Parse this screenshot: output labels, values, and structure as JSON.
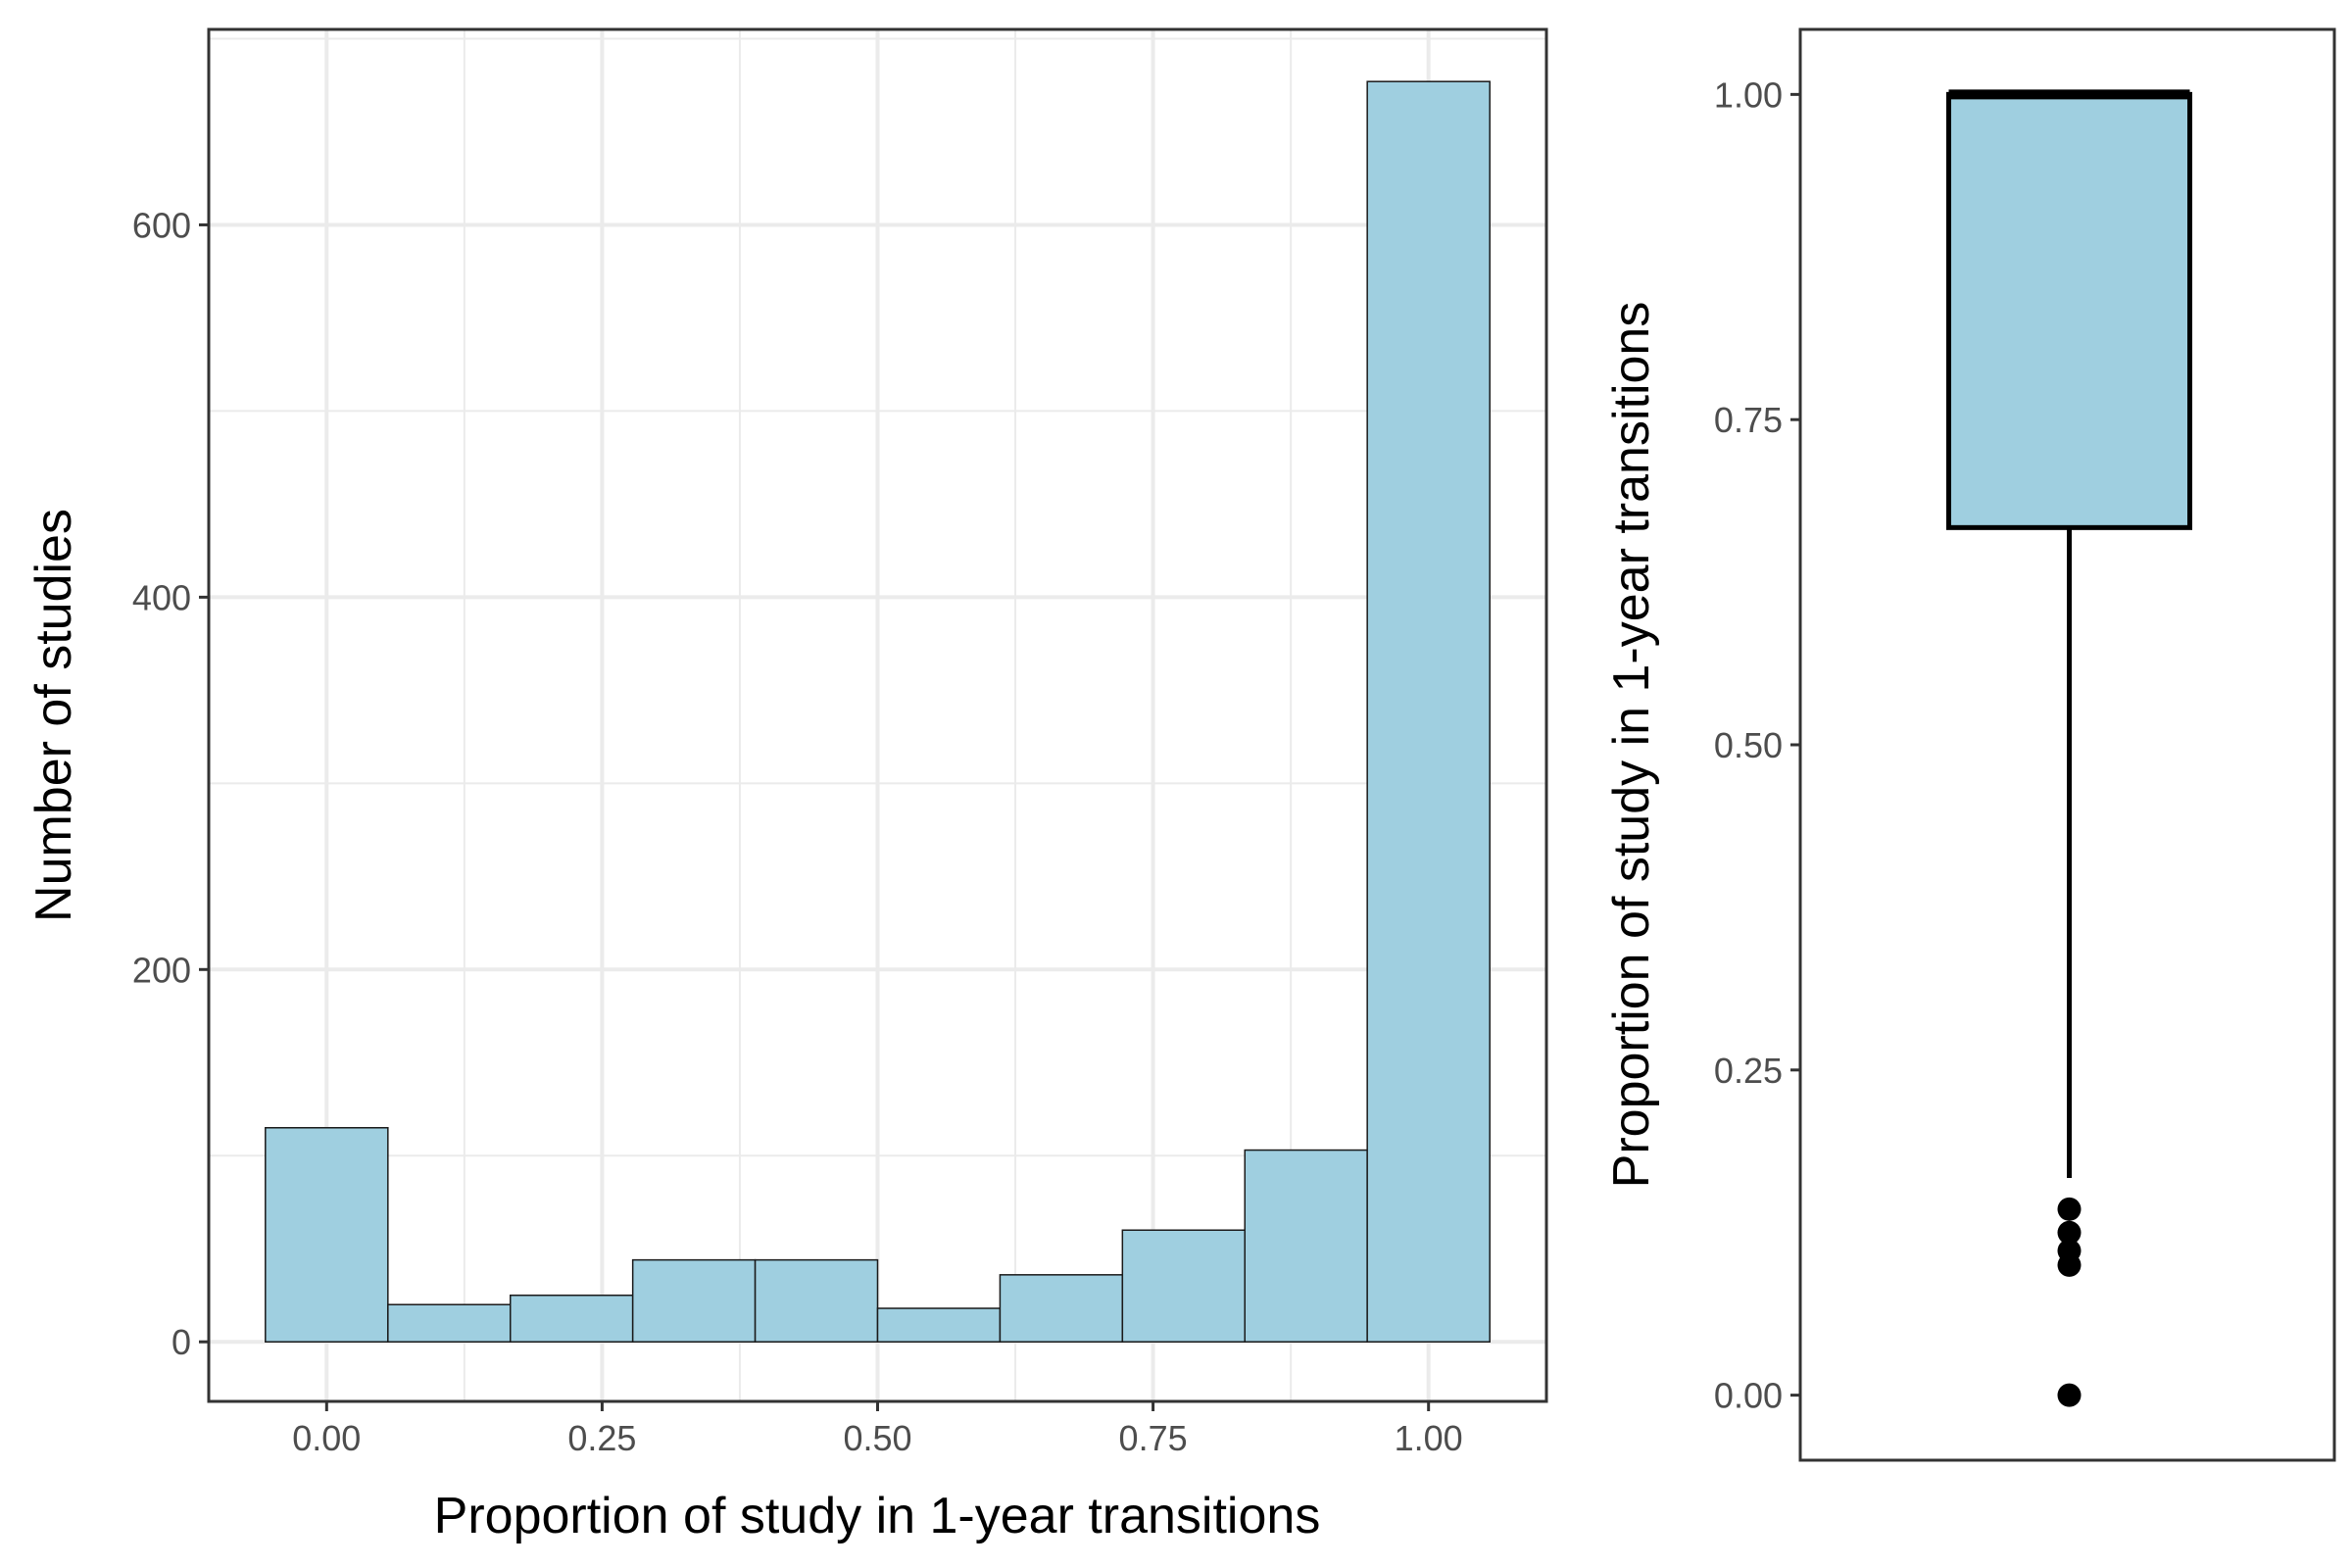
{
  "chart_data": [
    {
      "type": "bar",
      "subtype": "histogram",
      "xlabel": "Proportion of study in 1-year transitions",
      "ylabel": "Number of studies",
      "fill_color": "#9fcfe0",
      "xlim": [
        -0.107,
        1.107
      ],
      "ylim": [
        -32,
        705
      ],
      "x_ticks": [
        0,
        0.25,
        0.5,
        0.75,
        1
      ],
      "x_tick_labels": [
        "0.00",
        "0.25",
        "0.50",
        "0.75",
        "1.00"
      ],
      "y_ticks": [
        0,
        200,
        400,
        600
      ],
      "y_tick_labels": [
        "0",
        "200",
        "400",
        "600"
      ],
      "grid": true,
      "bins": [
        {
          "x0": -0.0556,
          "x1": 0.0556,
          "count": 115
        },
        {
          "x0": 0.0556,
          "x1": 0.1667,
          "count": 20
        },
        {
          "x0": 0.1667,
          "x1": 0.2778,
          "count": 25
        },
        {
          "x0": 0.2778,
          "x1": 0.3889,
          "count": 44
        },
        {
          "x0": 0.3889,
          "x1": 0.5,
          "count": 44
        },
        {
          "x0": 0.5,
          "x1": 0.6111,
          "count": 18
        },
        {
          "x0": 0.6111,
          "x1": 0.7222,
          "count": 36
        },
        {
          "x0": 0.7222,
          "x1": 0.8333,
          "count": 60
        },
        {
          "x0": 0.8333,
          "x1": 0.9444,
          "count": 103
        },
        {
          "x0": 0.9444,
          "x1": 1.0556,
          "count": 677
        }
      ]
    },
    {
      "type": "box",
      "ylabel": "Proportion of study in 1-year transitions",
      "fill_color": "#9fcfe0",
      "ylim": [
        -0.05,
        1.05
      ],
      "y_ticks": [
        0,
        0.25,
        0.5,
        0.75,
        1
      ],
      "y_tick_labels": [
        "0.00",
        "0.25",
        "0.50",
        "0.75",
        "1.00"
      ],
      "grid": false,
      "q1": 0.667,
      "median": 1.0,
      "q3": 1.0,
      "whisker_low": 0.167,
      "whisker_high": 1.0,
      "outliers": [
        0.143,
        0.125,
        0.111,
        0.1,
        0.0
      ]
    }
  ]
}
